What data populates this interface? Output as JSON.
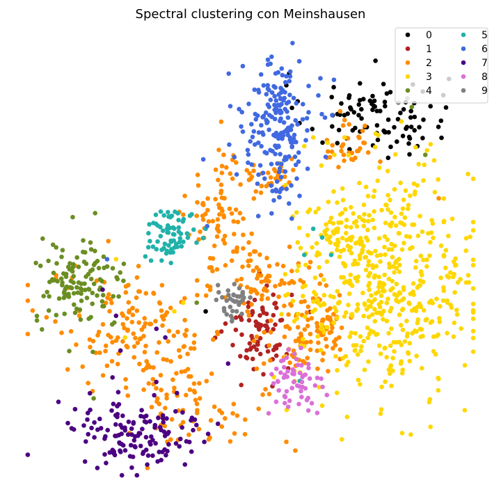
{
  "chart_data": {
    "type": "scatter",
    "title": "Spectral clustering con Meinshausen",
    "xlabel": "",
    "ylabel": "",
    "axes_visible": false,
    "grid": false,
    "xlim": [
      0,
      100
    ],
    "ylim": [
      0,
      100
    ],
    "legend": {
      "placement": "top-right",
      "columns": 2
    },
    "series": [
      {
        "name": "0",
        "color": "#000000",
        "clusters": [
          [
            78,
            83,
            8,
            5,
            95
          ]
        ],
        "extra": [
          [
            58,
            90
          ],
          [
            40,
            38
          ]
        ]
      },
      {
        "name": "1",
        "color": "#b22222",
        "clusters": [
          [
            52,
            34,
            3.5,
            5,
            80
          ]
        ],
        "extra": []
      },
      {
        "name": "2",
        "color": "#ff8c00",
        "clusters": [
          [
            44,
            60,
            4,
            8,
            90
          ],
          [
            53,
            45,
            5,
            4,
            60
          ],
          [
            65,
            35,
            4,
            5,
            90
          ],
          [
            25,
            33,
            10,
            7,
            160
          ],
          [
            36,
            16,
            6,
            4,
            60
          ],
          [
            55,
            68,
            3,
            2,
            30
          ],
          [
            72,
            76,
            3,
            3,
            30
          ],
          [
            58,
            28,
            4,
            5,
            20
          ]
        ],
        "extra": [
          [
            71,
            82
          ],
          [
            70,
            84
          ],
          [
            72,
            81
          ],
          [
            92,
            64
          ],
          [
            60,
            6
          ],
          [
            58,
            8
          ],
          [
            27,
            2
          ],
          [
            44,
            74
          ]
        ]
      },
      {
        "name": "3",
        "color": "#ffd700",
        "clusters": [
          [
            80,
            45,
            10,
            13,
            520
          ],
          [
            70,
            56,
            5,
            3,
            40
          ]
        ],
        "extra": [
          [
            62,
            76
          ],
          [
            64,
            78
          ],
          [
            71,
            78
          ],
          [
            33,
            38
          ],
          [
            35,
            40
          ],
          [
            62,
            30
          ],
          [
            22,
            32
          ],
          [
            20,
            50
          ]
        ]
      },
      {
        "name": "4",
        "color": "#6b8e23",
        "clusters": [
          [
            12,
            44,
            5,
            5,
            120
          ]
        ],
        "extra": [
          [
            89,
            74
          ],
          [
            38,
            40
          ],
          [
            86,
            85
          ],
          [
            15,
            18
          ]
        ]
      },
      {
        "name": "5",
        "color": "#20b2aa",
        "clusters": [
          [
            32,
            56,
            3,
            3,
            70
          ]
        ],
        "extra": [
          [
            64,
            57
          ],
          [
            66,
            55
          ],
          [
            62,
            51
          ],
          [
            68,
            51
          ],
          [
            61,
            22
          ],
          [
            40,
            57
          ]
        ]
      },
      {
        "name": "6",
        "color": "#4169e1",
        "clusters": [
          [
            56,
            80,
            4,
            8,
            200
          ]
        ],
        "extra": [
          [
            18,
            50
          ],
          [
            58,
            73
          ],
          [
            56,
            72
          ]
        ]
      },
      {
        "name": "7",
        "color": "#4b0082",
        "clusters": [
          [
            24,
            10,
            8,
            5,
            140
          ]
        ],
        "extra": [
          [
            29,
            34
          ],
          [
            31,
            32
          ],
          [
            21,
            29
          ],
          [
            20,
            37
          ],
          [
            45,
            26
          ],
          [
            17,
            43
          ]
        ]
      },
      {
        "name": "8",
        "color": "#da70d6",
        "clusters": [
          [
            60,
            21,
            3,
            4,
            60
          ]
        ],
        "extra": []
      },
      {
        "name": "9",
        "color": "#808080",
        "clusters": [
          [
            46,
            40,
            2.5,
            2.5,
            35
          ]
        ],
        "extra": [
          [
            83,
            86
          ],
          [
            85,
            87
          ]
        ]
      }
    ]
  }
}
